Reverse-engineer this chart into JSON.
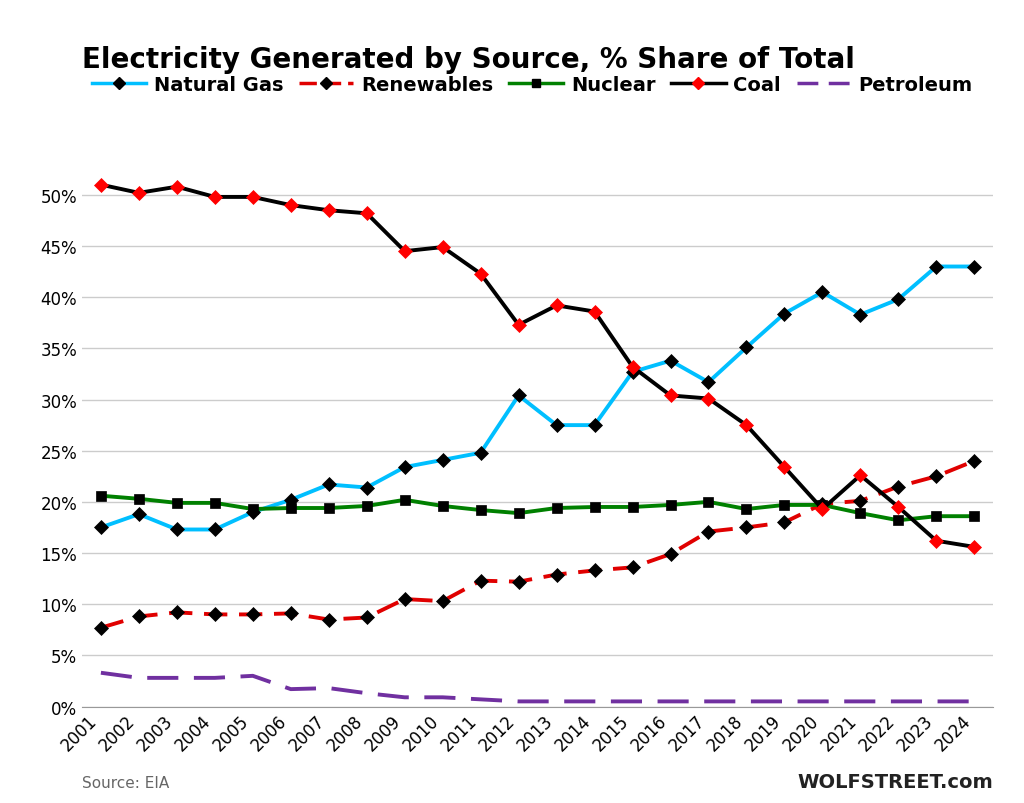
{
  "title": "Electricity Generated by Source, % Share of Total",
  "source_text": "Source: EIA",
  "watermark": "WOLFSTREET.com",
  "years": [
    2001,
    2002,
    2003,
    2004,
    2005,
    2006,
    2007,
    2008,
    2009,
    2010,
    2011,
    2012,
    2013,
    2014,
    2015,
    2016,
    2017,
    2018,
    2019,
    2020,
    2021,
    2022,
    2023,
    2024
  ],
  "natural_gas": [
    17.5,
    18.8,
    17.3,
    17.3,
    19.0,
    20.2,
    21.7,
    21.4,
    23.4,
    24.1,
    24.8,
    30.4,
    27.5,
    27.5,
    32.7,
    33.8,
    31.7,
    35.1,
    38.4,
    40.5,
    38.3,
    39.8,
    43.0,
    43.0
  ],
  "renewables": [
    7.7,
    8.8,
    9.2,
    9.0,
    9.0,
    9.1,
    8.5,
    8.7,
    10.5,
    10.3,
    12.3,
    12.2,
    12.9,
    13.3,
    13.6,
    14.9,
    17.1,
    17.5,
    18.0,
    19.8,
    20.1,
    21.5,
    22.5,
    24.0
  ],
  "nuclear": [
    20.6,
    20.3,
    19.9,
    19.9,
    19.3,
    19.4,
    19.4,
    19.6,
    20.2,
    19.6,
    19.2,
    18.9,
    19.4,
    19.5,
    19.5,
    19.7,
    20.0,
    19.3,
    19.7,
    19.7,
    18.9,
    18.2,
    18.6,
    18.6
  ],
  "coal": [
    51.0,
    50.2,
    50.8,
    49.8,
    49.8,
    49.0,
    48.5,
    48.2,
    44.5,
    44.9,
    42.3,
    37.3,
    39.2,
    38.6,
    33.2,
    30.4,
    30.1,
    27.5,
    23.4,
    19.3,
    22.6,
    19.5,
    16.2,
    15.6
  ],
  "petroleum": [
    3.3,
    2.8,
    2.8,
    2.8,
    3.0,
    1.7,
    1.8,
    1.3,
    0.9,
    0.9,
    0.7,
    0.5,
    0.5,
    0.5,
    0.5,
    0.5,
    0.5,
    0.5,
    0.5,
    0.5,
    0.5,
    0.5,
    0.5,
    0.5
  ],
  "natural_gas_color": "#00bfff",
  "renewables_color": "#e00000",
  "nuclear_color": "#008000",
  "coal_color": "#000000",
  "petroleum_color": "#7030a0",
  "ylim": [
    0,
    55
  ],
  "yticks": [
    0,
    5,
    10,
    15,
    20,
    25,
    30,
    35,
    40,
    45,
    50
  ],
  "grid_color": "#cccccc",
  "title_fontsize": 20,
  "legend_fontsize": 14,
  "tick_fontsize": 12,
  "source_fontsize": 11,
  "watermark_fontsize": 14
}
